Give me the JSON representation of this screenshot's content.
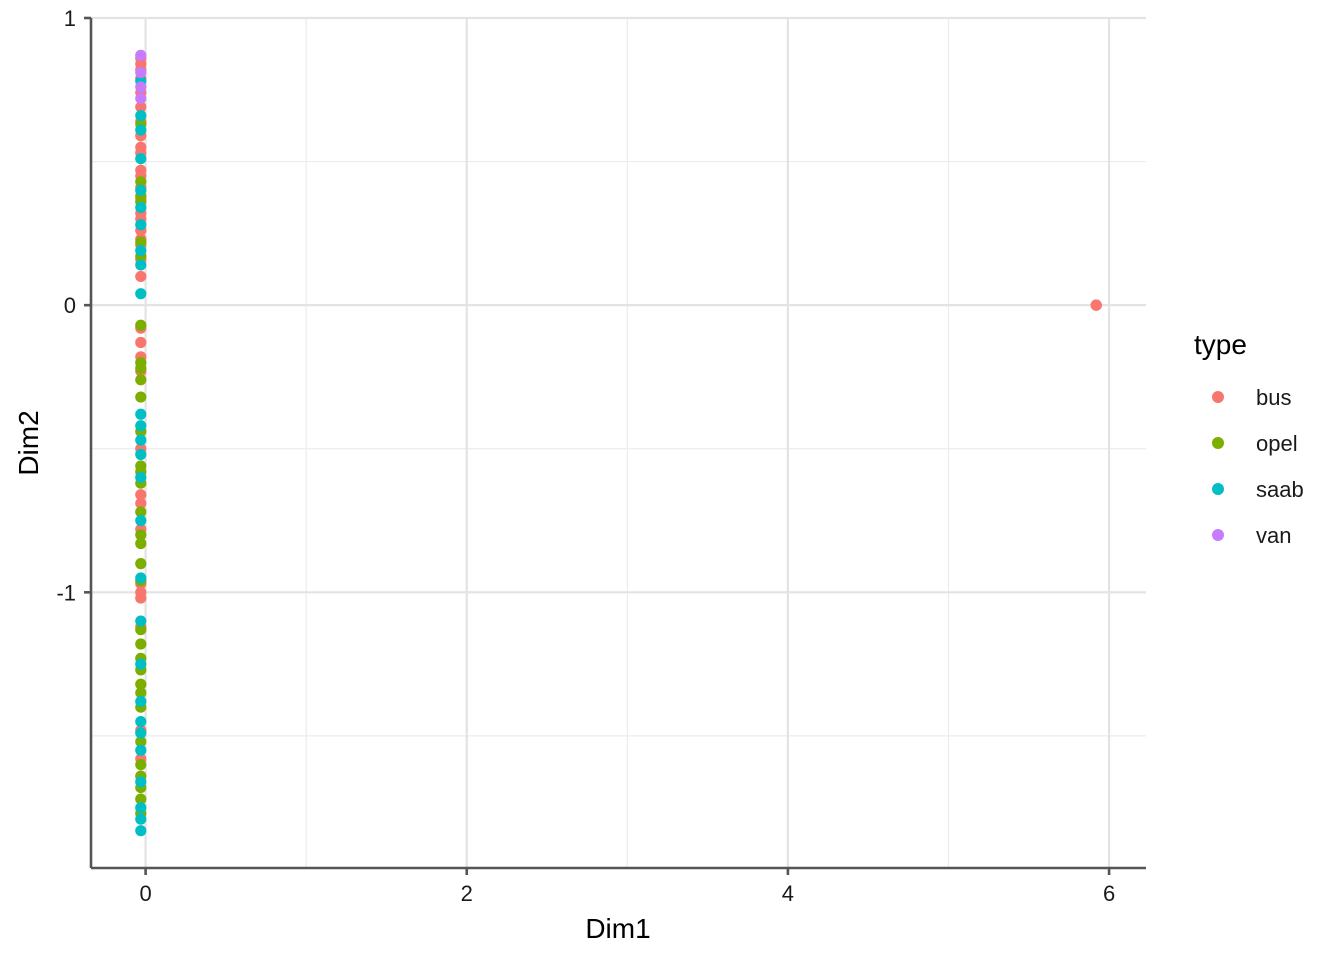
{
  "chart_data": {
    "type": "scatter",
    "xlabel": "Dim1",
    "ylabel": "Dim2",
    "xlim": [
      -0.34,
      6.23
    ],
    "ylim": [
      -1.96,
      1.0
    ],
    "x_ticks": [
      0,
      2,
      4,
      6
    ],
    "x_tick_labels": [
      "0",
      "2",
      "4",
      "6"
    ],
    "x_minor_ticks": [
      1,
      3,
      5
    ],
    "y_ticks": [
      -1,
      0,
      1
    ],
    "y_tick_labels": [
      "-1",
      "0",
      "1"
    ],
    "y_minor_ticks": [
      -1.5,
      -0.5,
      0.5
    ],
    "grid": true,
    "legend": {
      "title": "type",
      "placement": "right",
      "entries": [
        "bus",
        "opel",
        "saab",
        "van"
      ]
    },
    "colors": {
      "bus": "#F8766D",
      "opel": "#7CAE00",
      "saab": "#00BFC4",
      "van": "#C77CFF"
    },
    "series": [
      {
        "name": "bus",
        "points": [
          [
            -0.03,
            0.86
          ],
          [
            -0.03,
            0.84
          ],
          [
            -0.03,
            0.82
          ],
          [
            -0.03,
            0.79
          ],
          [
            -0.03,
            0.74
          ],
          [
            -0.03,
            0.69
          ],
          [
            -0.03,
            0.64
          ],
          [
            -0.03,
            0.59
          ],
          [
            -0.03,
            0.55
          ],
          [
            -0.03,
            0.53
          ],
          [
            -0.03,
            0.47
          ],
          [
            -0.03,
            0.45
          ],
          [
            -0.03,
            0.41
          ],
          [
            -0.03,
            0.37
          ],
          [
            -0.03,
            0.32
          ],
          [
            -0.03,
            0.3
          ],
          [
            -0.03,
            0.26
          ],
          [
            -0.03,
            0.23
          ],
          [
            -0.03,
            0.21
          ],
          [
            -0.03,
            0.16
          ],
          [
            -0.03,
            0.1
          ],
          [
            -0.03,
            -0.08
          ],
          [
            -0.03,
            -0.13
          ],
          [
            -0.03,
            -0.18
          ],
          [
            -0.03,
            -0.23
          ],
          [
            -0.03,
            -0.5
          ],
          [
            -0.03,
            -0.66
          ],
          [
            -0.03,
            -0.69
          ],
          [
            -0.03,
            -0.78
          ],
          [
            -0.03,
            -0.97
          ],
          [
            -0.03,
            -1.0
          ],
          [
            -0.03,
            -1.02
          ],
          [
            -0.03,
            -1.12
          ],
          [
            -0.03,
            -1.48
          ],
          [
            -0.03,
            -1.58
          ],
          [
            5.92,
            0.0
          ],
          [
            5.92,
            0.0
          ],
          [
            5.92,
            0.0
          ]
        ]
      },
      {
        "name": "opel",
        "points": [
          [
            -0.03,
            0.63
          ],
          [
            -0.03,
            0.43
          ],
          [
            -0.03,
            0.38
          ],
          [
            -0.03,
            0.36
          ],
          [
            -0.03,
            0.22
          ],
          [
            -0.03,
            0.17
          ],
          [
            -0.03,
            -0.07
          ],
          [
            -0.03,
            -0.2
          ],
          [
            -0.03,
            -0.22
          ],
          [
            -0.03,
            -0.26
          ],
          [
            -0.03,
            -0.32
          ],
          [
            -0.03,
            -0.44
          ],
          [
            -0.03,
            -0.56
          ],
          [
            -0.03,
            -0.58
          ],
          [
            -0.03,
            -0.62
          ],
          [
            -0.03,
            -0.72
          ],
          [
            -0.03,
            -0.8
          ],
          [
            -0.03,
            -0.83
          ],
          [
            -0.03,
            -0.9
          ],
          [
            -0.03,
            -0.96
          ],
          [
            -0.03,
            -1.13
          ],
          [
            -0.03,
            -1.18
          ],
          [
            -0.03,
            -1.23
          ],
          [
            -0.03,
            -1.27
          ],
          [
            -0.03,
            -1.32
          ],
          [
            -0.03,
            -1.35
          ],
          [
            -0.03,
            -1.4
          ],
          [
            -0.03,
            -1.52
          ],
          [
            -0.03,
            -1.6
          ],
          [
            -0.03,
            -1.64
          ],
          [
            -0.03,
            -1.68
          ],
          [
            -0.03,
            -1.72
          ],
          [
            -0.03,
            -1.77
          ]
        ]
      },
      {
        "name": "saab",
        "points": [
          [
            -0.03,
            0.78
          ],
          [
            -0.03,
            0.66
          ],
          [
            -0.03,
            0.61
          ],
          [
            -0.03,
            0.51
          ],
          [
            -0.03,
            0.4
          ],
          [
            -0.03,
            0.34
          ],
          [
            -0.03,
            0.28
          ],
          [
            -0.03,
            0.19
          ],
          [
            -0.03,
            0.14
          ],
          [
            -0.03,
            0.04
          ],
          [
            -0.03,
            -0.38
          ],
          [
            -0.03,
            -0.42
          ],
          [
            -0.03,
            -0.47
          ],
          [
            -0.03,
            -0.52
          ],
          [
            -0.03,
            -0.6
          ],
          [
            -0.03,
            -0.75
          ],
          [
            -0.03,
            -0.95
          ],
          [
            -0.03,
            -1.1
          ],
          [
            -0.03,
            -1.25
          ],
          [
            -0.03,
            -1.38
          ],
          [
            -0.03,
            -1.45
          ],
          [
            -0.03,
            -1.49
          ],
          [
            -0.03,
            -1.55
          ],
          [
            -0.03,
            -1.66
          ],
          [
            -0.03,
            -1.75
          ],
          [
            -0.03,
            -1.79
          ],
          [
            -0.03,
            -1.83
          ]
        ]
      },
      {
        "name": "van",
        "points": [
          [
            -0.03,
            0.87
          ],
          [
            -0.03,
            0.81
          ],
          [
            -0.03,
            0.76
          ],
          [
            -0.03,
            0.72
          ]
        ]
      }
    ]
  }
}
